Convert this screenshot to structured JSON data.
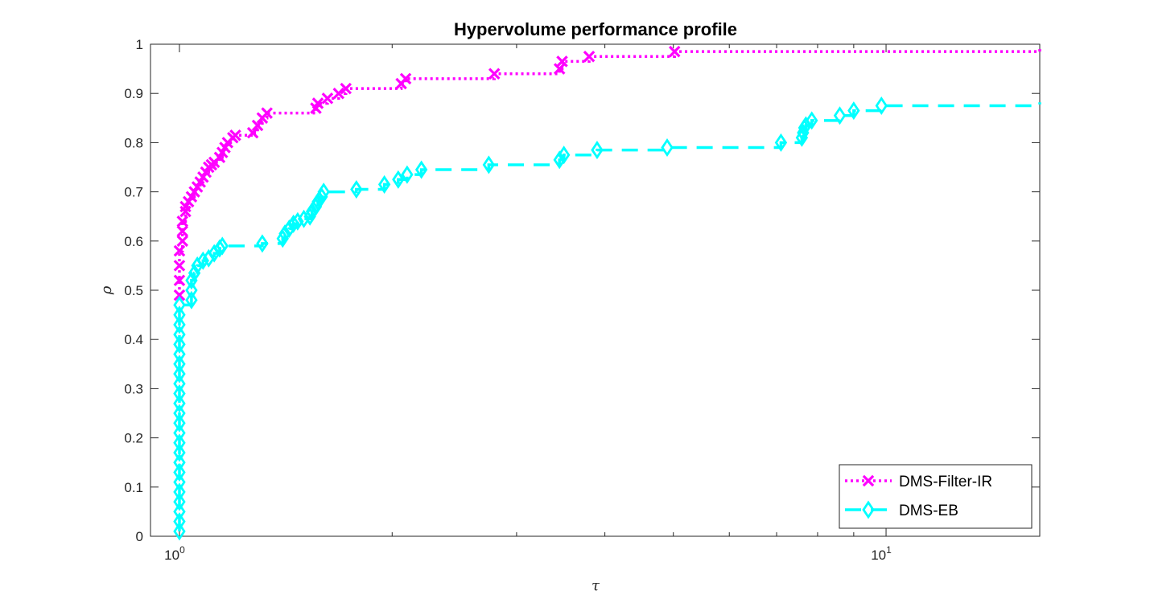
{
  "chart_data": {
    "type": "line",
    "title": "Hypervolume performance profile",
    "xlabel": "τ",
    "ylabel": "ρ",
    "x_scale": "log",
    "xlim": [
      0.91,
      16.5
    ],
    "ylim": [
      0,
      1
    ],
    "x_ticks": [
      {
        "value": 1,
        "base": "10",
        "exp": "0"
      },
      {
        "value": 10,
        "base": "10",
        "exp": "1"
      }
    ],
    "y_ticks": [
      "0",
      "0.1",
      "0.2",
      "0.3",
      "0.4",
      "0.5",
      "0.6",
      "0.7",
      "0.8",
      "0.9",
      "1"
    ],
    "grid": false,
    "legend_position": "bottom-right",
    "series": [
      {
        "name": "DMS-Filter-IR",
        "color": "#ff00ff",
        "line_style": "dotted",
        "marker": "x",
        "points": [
          [
            1.0,
            0.49
          ],
          [
            1.0,
            0.52
          ],
          [
            1.0,
            0.55
          ],
          [
            1.0,
            0.58
          ],
          [
            1.01,
            0.6
          ],
          [
            1.01,
            0.62
          ],
          [
            1.01,
            0.64
          ],
          [
            1.02,
            0.66
          ],
          [
            1.02,
            0.67
          ],
          [
            1.03,
            0.68
          ],
          [
            1.04,
            0.69
          ],
          [
            1.05,
            0.7
          ],
          [
            1.06,
            0.71
          ],
          [
            1.07,
            0.72
          ],
          [
            1.08,
            0.73
          ],
          [
            1.09,
            0.74
          ],
          [
            1.1,
            0.75
          ],
          [
            1.11,
            0.755
          ],
          [
            1.12,
            0.76
          ],
          [
            1.14,
            0.77
          ],
          [
            1.15,
            0.78
          ],
          [
            1.16,
            0.79
          ],
          [
            1.17,
            0.8
          ],
          [
            1.19,
            0.81
          ],
          [
            1.2,
            0.815
          ],
          [
            1.27,
            0.82
          ],
          [
            1.29,
            0.835
          ],
          [
            1.31,
            0.85
          ],
          [
            1.33,
            0.86
          ],
          [
            1.56,
            0.87
          ],
          [
            1.57,
            0.88
          ],
          [
            1.62,
            0.89
          ],
          [
            1.68,
            0.9
          ],
          [
            1.72,
            0.91
          ],
          [
            2.06,
            0.92
          ],
          [
            2.09,
            0.93
          ],
          [
            2.79,
            0.94
          ],
          [
            3.45,
            0.95
          ],
          [
            3.48,
            0.965
          ],
          [
            3.8,
            0.975
          ],
          [
            5.02,
            0.985
          ],
          [
            16.5,
            0.99
          ]
        ]
      },
      {
        "name": "DMS-EB",
        "color": "#00ffff",
        "line_style": "dashed",
        "marker": "diamond",
        "points": [
          [
            1.0,
            0.01
          ],
          [
            1.0,
            0.03
          ],
          [
            1.0,
            0.05
          ],
          [
            1.0,
            0.07
          ],
          [
            1.0,
            0.09
          ],
          [
            1.0,
            0.11
          ],
          [
            1.0,
            0.13
          ],
          [
            1.0,
            0.15
          ],
          [
            1.0,
            0.17
          ],
          [
            1.0,
            0.19
          ],
          [
            1.0,
            0.21
          ],
          [
            1.0,
            0.23
          ],
          [
            1.0,
            0.25
          ],
          [
            1.0,
            0.27
          ],
          [
            1.0,
            0.29
          ],
          [
            1.0,
            0.31
          ],
          [
            1.0,
            0.33
          ],
          [
            1.0,
            0.35
          ],
          [
            1.0,
            0.37
          ],
          [
            1.0,
            0.39
          ],
          [
            1.0,
            0.41
          ],
          [
            1.0,
            0.43
          ],
          [
            1.0,
            0.45
          ],
          [
            1.0,
            0.47
          ],
          [
            1.04,
            0.48
          ],
          [
            1.04,
            0.5
          ],
          [
            1.04,
            0.52
          ],
          [
            1.05,
            0.535
          ],
          [
            1.06,
            0.55
          ],
          [
            1.08,
            0.56
          ],
          [
            1.1,
            0.565
          ],
          [
            1.12,
            0.575
          ],
          [
            1.14,
            0.585
          ],
          [
            1.15,
            0.59
          ],
          [
            1.31,
            0.595
          ],
          [
            1.4,
            0.605
          ],
          [
            1.41,
            0.615
          ],
          [
            1.43,
            0.625
          ],
          [
            1.45,
            0.635
          ],
          [
            1.47,
            0.64
          ],
          [
            1.5,
            0.645
          ],
          [
            1.53,
            0.65
          ],
          [
            1.54,
            0.66
          ],
          [
            1.56,
            0.67
          ],
          [
            1.57,
            0.68
          ],
          [
            1.59,
            0.69
          ],
          [
            1.6,
            0.7
          ],
          [
            1.78,
            0.705
          ],
          [
            1.95,
            0.715
          ],
          [
            2.04,
            0.725
          ],
          [
            2.1,
            0.735
          ],
          [
            2.2,
            0.745
          ],
          [
            2.74,
            0.755
          ],
          [
            3.45,
            0.765
          ],
          [
            3.5,
            0.775
          ],
          [
            3.9,
            0.785
          ],
          [
            4.9,
            0.79
          ],
          [
            7.1,
            0.8
          ],
          [
            7.6,
            0.81
          ],
          [
            7.63,
            0.82
          ],
          [
            7.66,
            0.83
          ],
          [
            7.7,
            0.835
          ],
          [
            7.85,
            0.845
          ],
          [
            8.6,
            0.855
          ],
          [
            9.0,
            0.865
          ],
          [
            9.85,
            0.875
          ],
          [
            16.5,
            0.882
          ]
        ]
      }
    ]
  }
}
